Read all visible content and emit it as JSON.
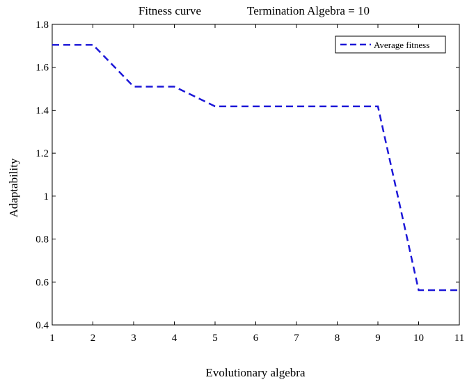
{
  "chart_data": {
    "type": "line",
    "title": "Fitness curve",
    "subtitle": "Termination Algebra = 10",
    "xlabel": "Evolutionary algebra",
    "ylabel": "Adaptability",
    "xlim": [
      1,
      11
    ],
    "ylim": [
      0.4,
      1.8
    ],
    "x_ticks": [
      "1",
      "2",
      "3",
      "4",
      "5",
      "6",
      "7",
      "8",
      "9",
      "10",
      "11"
    ],
    "y_ticks": [
      "0.4",
      "0.6",
      "0.8",
      "1",
      "1.2",
      "1.4",
      "1.6",
      "1.8"
    ],
    "grid": false,
    "legend_position": "top-right",
    "series": [
      {
        "name": "Average fitness",
        "color": "#1c17d8",
        "line_style": "dashed",
        "x": [
          1,
          2,
          3,
          4,
          5,
          6,
          7,
          8,
          9,
          10,
          11
        ],
        "y": [
          1.705,
          1.705,
          1.51,
          1.51,
          1.418,
          1.418,
          1.418,
          1.418,
          1.418,
          0.562,
          0.562
        ]
      }
    ]
  }
}
